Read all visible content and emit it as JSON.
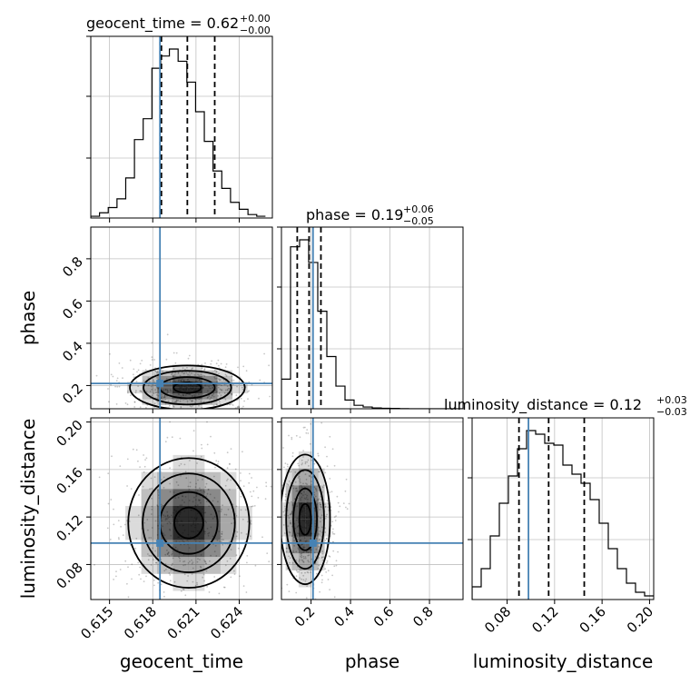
{
  "chart_data": {
    "type": "corner",
    "parameters": [
      "geocent_time",
      "phase",
      "luminosity_distance"
    ],
    "colors": {
      "truth": "#4682b4",
      "hist": "#000000",
      "grid": "#c0c0c0",
      "density": "#000000"
    },
    "panels": {
      "diag_geocent_time": {
        "title_text": "geocent_time = 0.62",
        "title_sup": "+0.00",
        "title_sub": "−0.00",
        "xlim": [
          0.6137,
          0.6263
        ],
        "hist_edges_start": 0.6137,
        "hist_bin_width": 0.000606,
        "hist_counts": [
          0.01,
          0.03,
          0.06,
          0.11,
          0.23,
          0.45,
          0.57,
          0.86,
          0.93,
          0.97,
          0.9,
          0.78,
          0.61,
          0.44,
          0.27,
          0.17,
          0.09,
          0.05,
          0.02,
          0.01
        ],
        "quantiles": [
          0.6186,
          0.6204,
          0.6223
        ],
        "truth": 0.6185
      },
      "diag_phase": {
        "title_text": "phase = 0.19",
        "title_sup": "+0.06",
        "title_sub": "−0.05",
        "xlim": [
          0.05,
          0.97
        ],
        "hist_edges_start": 0.05,
        "hist_bin_width": 0.046,
        "hist_counts": [
          0.17,
          0.93,
          0.97,
          0.84,
          0.56,
          0.3,
          0.13,
          0.05,
          0.02,
          0.01,
          0.005,
          0.003,
          0.002,
          0.001,
          0,
          0,
          0,
          0,
          0,
          0
        ],
        "quantiles": [
          0.13,
          0.19,
          0.25
        ],
        "truth": 0.21
      },
      "diag_luminosity_distance": {
        "title_text": "luminosity_distance = 0.12",
        "title_sup": "+0.03",
        "title_sub": "−0.03",
        "xlim": [
          0.0505,
          0.2035
        ],
        "hist_edges_start": 0.0505,
        "hist_bin_width": 0.00765,
        "hist_counts": [
          0.07,
          0.17,
          0.35,
          0.53,
          0.68,
          0.83,
          0.93,
          0.91,
          0.86,
          0.85,
          0.74,
          0.69,
          0.64,
          0.55,
          0.42,
          0.28,
          0.17,
          0.09,
          0.04,
          0.02
        ],
        "quantiles": [
          0.09,
          0.115,
          0.145
        ],
        "truth": 0.098
      },
      "phase_vs_geocent_time": {
        "x_param": "geocent_time",
        "y_param": "phase",
        "xlim": [
          0.6137,
          0.6263
        ],
        "ylim": [
          0.09,
          0.95
        ],
        "center": [
          0.6204,
          0.19
        ],
        "sigma": [
          0.0019,
          0.05
        ],
        "truth": [
          0.6185,
          0.21
        ]
      },
      "luminosity_distance_vs_geocent_time": {
        "x_param": "geocent_time",
        "y_param": "luminosity_distance",
        "xlim": [
          0.6137,
          0.6263
        ],
        "ylim": [
          0.0505,
          0.2035
        ],
        "center": [
          0.6205,
          0.115
        ],
        "sigma": [
          0.002,
          0.026
        ],
        "truth": [
          0.6185,
          0.098
        ]
      },
      "luminosity_distance_vs_phase": {
        "x_param": "phase",
        "y_param": "luminosity_distance",
        "xlim": [
          0.05,
          0.97
        ],
        "ylim": [
          0.0505,
          0.2035
        ],
        "center": [
          0.17,
          0.118
        ],
        "sigma": [
          0.06,
          0.026
        ],
        "truth": [
          0.21,
          0.098
        ]
      }
    },
    "axes": {
      "geocent_time": {
        "label": "geocent_time",
        "ticks": [
          0.615,
          0.618,
          0.621,
          0.624
        ],
        "tick_labels": [
          "0.615",
          "0.618",
          "0.621",
          "0.624"
        ]
      },
      "phase": {
        "label": "phase",
        "ticks": [
          0.2,
          0.4,
          0.6,
          0.8
        ],
        "tick_labels": [
          "0.2",
          "0.4",
          "0.6",
          "0.8"
        ]
      },
      "luminosity_distance": {
        "label": "luminosity_distance",
        "ticks": [
          0.08,
          0.12,
          0.16,
          0.2
        ],
        "tick_labels": [
          "0.08",
          "0.12",
          "0.16",
          "0.20"
        ]
      }
    },
    "grid": true
  }
}
